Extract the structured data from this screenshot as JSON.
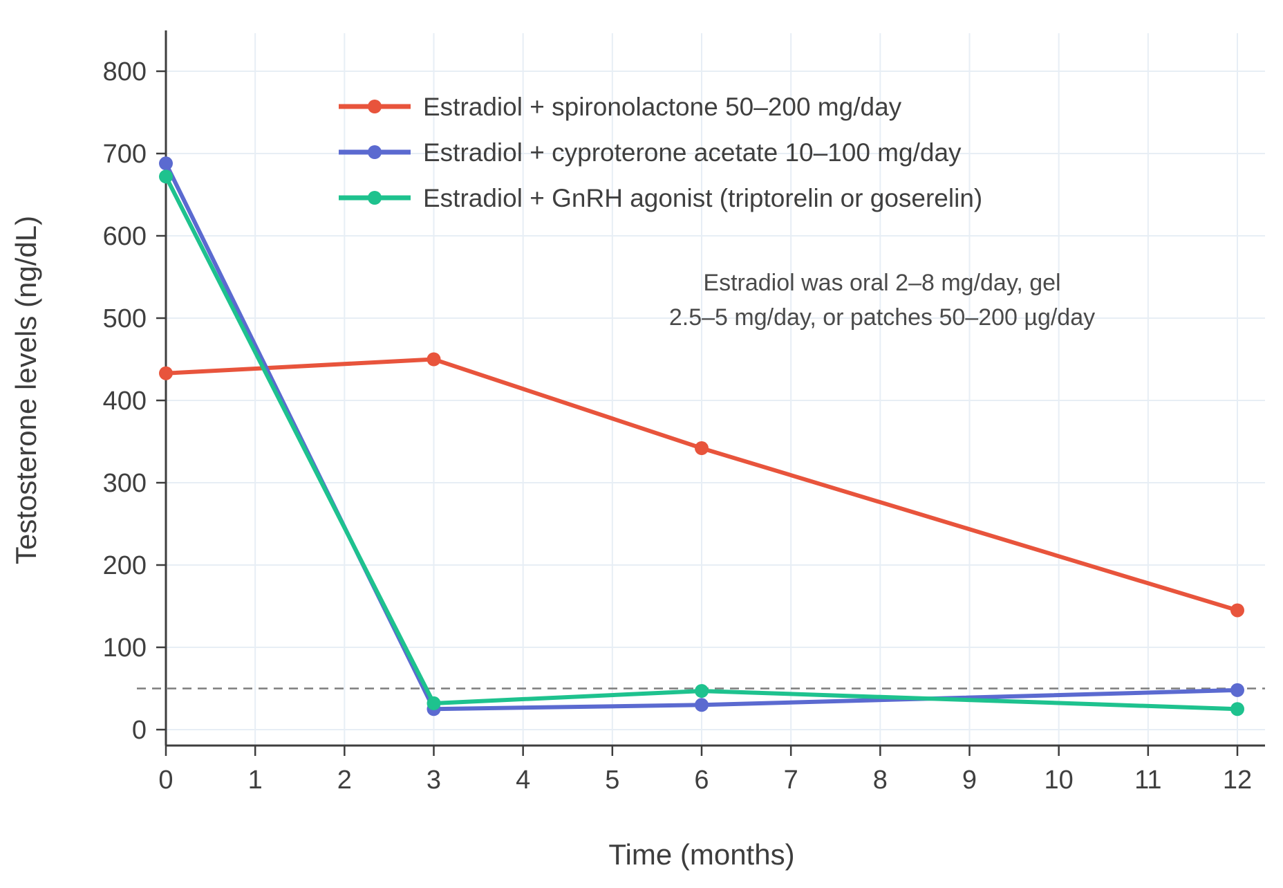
{
  "chart_data": {
    "type": "line",
    "x": [
      0,
      3,
      6,
      12
    ],
    "x_ticks": [
      0,
      1,
      2,
      3,
      4,
      5,
      6,
      7,
      8,
      9,
      10,
      11,
      12
    ],
    "y_ticks": [
      0,
      100,
      200,
      300,
      400,
      500,
      600,
      700,
      800
    ],
    "xlim": [
      0,
      12.3
    ],
    "ylim": [
      0,
      850
    ],
    "xlabel": "Time (months)",
    "ylabel": "Testosterone levels (ng/dL)",
    "grid": true,
    "grid_color": "#e7eef5",
    "axis_color": "#3d3d3d",
    "tick_label_color": "#3f3f3f",
    "legend_position": "inside-top-left",
    "legend_text_color": "#3f3f3f",
    "reference_line": {
      "y": 50,
      "style": "dashed",
      "color": "#7d7d7d"
    },
    "series": [
      {
        "name": "Estradiol + spironolactone 50–200 mg/day",
        "color": "#e8543c",
        "values": [
          433,
          450,
          342,
          145
        ]
      },
      {
        "name": "Estradiol + cyproterone acetate 10–100 mg/day",
        "color": "#5b6ad0",
        "values": [
          688,
          25,
          30,
          48
        ]
      },
      {
        "name": "Estradiol + GnRH agonist (triptorelin or goserelin)",
        "color": "#1ec28e",
        "values": [
          672,
          32,
          47,
          25
        ]
      }
    ],
    "annotation": {
      "color": "#4a4a4a",
      "lines": [
        "Estradiol was oral 2–8 mg/day, gel",
        "2.5–5 mg/day, or patches 50–200 µg/day"
      ]
    }
  }
}
